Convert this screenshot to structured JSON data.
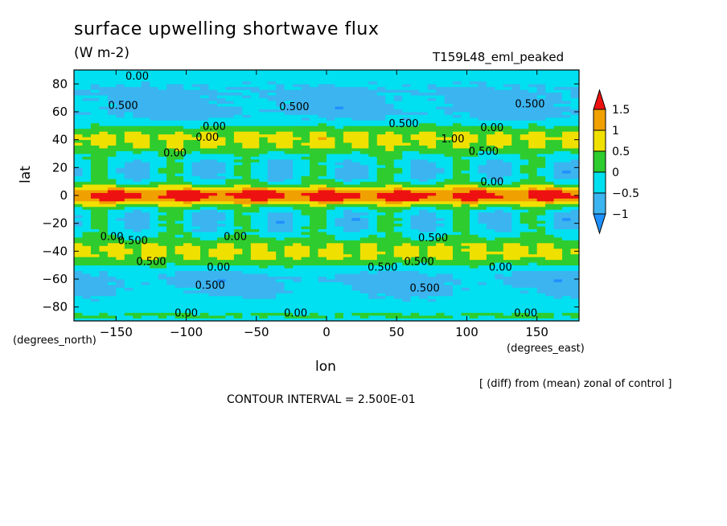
{
  "title": "surface upwelling shortwave flux",
  "units": "(W m-2)",
  "run_name": "T159L48_eml_peaked",
  "note": "[ (diff) from (mean) zonal of control ]",
  "contour_interval": "CONTOUR INTERVAL = 2.500E-01",
  "colors": {
    "c_lt_neg1": "#1e90ff",
    "c_neg1_neg05": "#3cb4f0",
    "c_neg05_0": "#00e0f0",
    "c_0_05": "#2ecc2e",
    "c_05_1": "#f0e000",
    "c_1_15": "#f0a000",
    "c_gt_15": "#ee1111"
  },
  "chart_data": {
    "type": "heatmap",
    "title": "surface upwelling shortwave flux",
    "subtitle": "(W m-2)",
    "xlabel": "lon",
    "ylabel": "lat",
    "x_units": "(degrees_east)",
    "y_units": "(degrees_north)",
    "xlim": [
      -180,
      180
    ],
    "ylim": [
      -90,
      90
    ],
    "x_ticks": [
      -150,
      -100,
      -50,
      0,
      50,
      100,
      150
    ],
    "y_ticks": [
      -80,
      -60,
      -40,
      -20,
      0,
      20,
      40,
      60,
      80
    ],
    "colorbar": {
      "levels": [
        -1,
        -0.5,
        0,
        0.5,
        1,
        1.5
      ],
      "labels": [
        "-1",
        "-0.5",
        "0",
        "0.5",
        "1",
        "1.5"
      ],
      "extend": "both"
    },
    "wave_number": 7,
    "zonal_profile": [
      {
        "lat": 90,
        "value": -0.4
      },
      {
        "lat": 86,
        "value": -0.2
      },
      {
        "lat": 82,
        "value": -0.4
      },
      {
        "lat": 74,
        "value": -0.6
      },
      {
        "lat": 66,
        "value": -0.6
      },
      {
        "lat": 60,
        "value": -0.7
      },
      {
        "lat": 54,
        "value": -0.4
      },
      {
        "lat": 48,
        "value": 0.2
      },
      {
        "lat": 42,
        "value": 0.7
      },
      {
        "lat": 36,
        "value": 0.55
      },
      {
        "lat": 30,
        "value": 0.0
      },
      {
        "lat": 24,
        "value": -0.3
      },
      {
        "lat": 18,
        "value": -0.4
      },
      {
        "lat": 12,
        "value": -0.3
      },
      {
        "lat": 8,
        "value": 0.2
      },
      {
        "lat": 5,
        "value": 0.9
      },
      {
        "lat": 2,
        "value": 1.6
      },
      {
        "lat": 0,
        "value": 1.8
      },
      {
        "lat": -2,
        "value": 1.6
      },
      {
        "lat": -5,
        "value": 0.9
      },
      {
        "lat": -8,
        "value": 0.2
      },
      {
        "lat": -12,
        "value": -0.3
      },
      {
        "lat": -18,
        "value": -0.4
      },
      {
        "lat": -24,
        "value": -0.3
      },
      {
        "lat": -30,
        "value": 0.0
      },
      {
        "lat": -36,
        "value": 0.55
      },
      {
        "lat": -42,
        "value": 0.7
      },
      {
        "lat": -48,
        "value": 0.2
      },
      {
        "lat": -54,
        "value": -0.4
      },
      {
        "lat": -60,
        "value": -0.7
      },
      {
        "lat": -66,
        "value": -0.6
      },
      {
        "lat": -74,
        "value": -0.4
      },
      {
        "lat": -82,
        "value": -0.2
      },
      {
        "lat": -86,
        "value": 0.1
      },
      {
        "lat": -90,
        "value": -0.2
      }
    ],
    "contour_labels": [
      {
        "text": "0.00",
        "lon": -135,
        "lat": 86
      },
      {
        "text": "0.500",
        "lon": -145,
        "lat": 65
      },
      {
        "text": "0.500",
        "lon": -23,
        "lat": 64
      },
      {
        "text": "0.500",
        "lon": 145,
        "lat": 66
      },
      {
        "text": "0.500",
        "lon": 55,
        "lat": 52
      },
      {
        "text": "0.00",
        "lon": -80,
        "lat": 50
      },
      {
        "text": "0.00",
        "lon": 118,
        "lat": 49
      },
      {
        "text": "0.00",
        "lon": -108,
        "lat": 31
      },
      {
        "text": "1.00",
        "lon": 90,
        "lat": 41
      },
      {
        "text": "0.500",
        "lon": 112,
        "lat": 32
      },
      {
        "text": "0.00",
        "lon": -85,
        "lat": 42
      },
      {
        "text": "0.00",
        "lon": 118,
        "lat": 10
      },
      {
        "text": "0.00",
        "lon": -153,
        "lat": -29
      },
      {
        "text": "0.500",
        "lon": -138,
        "lat": -32
      },
      {
        "text": "0.00",
        "lon": -65,
        "lat": -29
      },
      {
        "text": "0.500",
        "lon": -125,
        "lat": -47
      },
      {
        "text": "0.00",
        "lon": -77,
        "lat": -51
      },
      {
        "text": "0.500",
        "lon": 66,
        "lat": -47
      },
      {
        "text": "0.500",
        "lon": 40,
        "lat": -51
      },
      {
        "text": "0.500",
        "lon": 76,
        "lat": -30
      },
      {
        "text": "0.00",
        "lon": 124,
        "lat": -51
      },
      {
        "text": "0.500",
        "lon": -83,
        "lat": -64
      },
      {
        "text": "0.500",
        "lon": 70,
        "lat": -66
      },
      {
        "text": "0.00",
        "lon": -100,
        "lat": -84
      },
      {
        "text": "0.00",
        "lon": -22,
        "lat": -84
      },
      {
        "text": "0.00",
        "lon": 142,
        "lat": -84
      }
    ]
  }
}
